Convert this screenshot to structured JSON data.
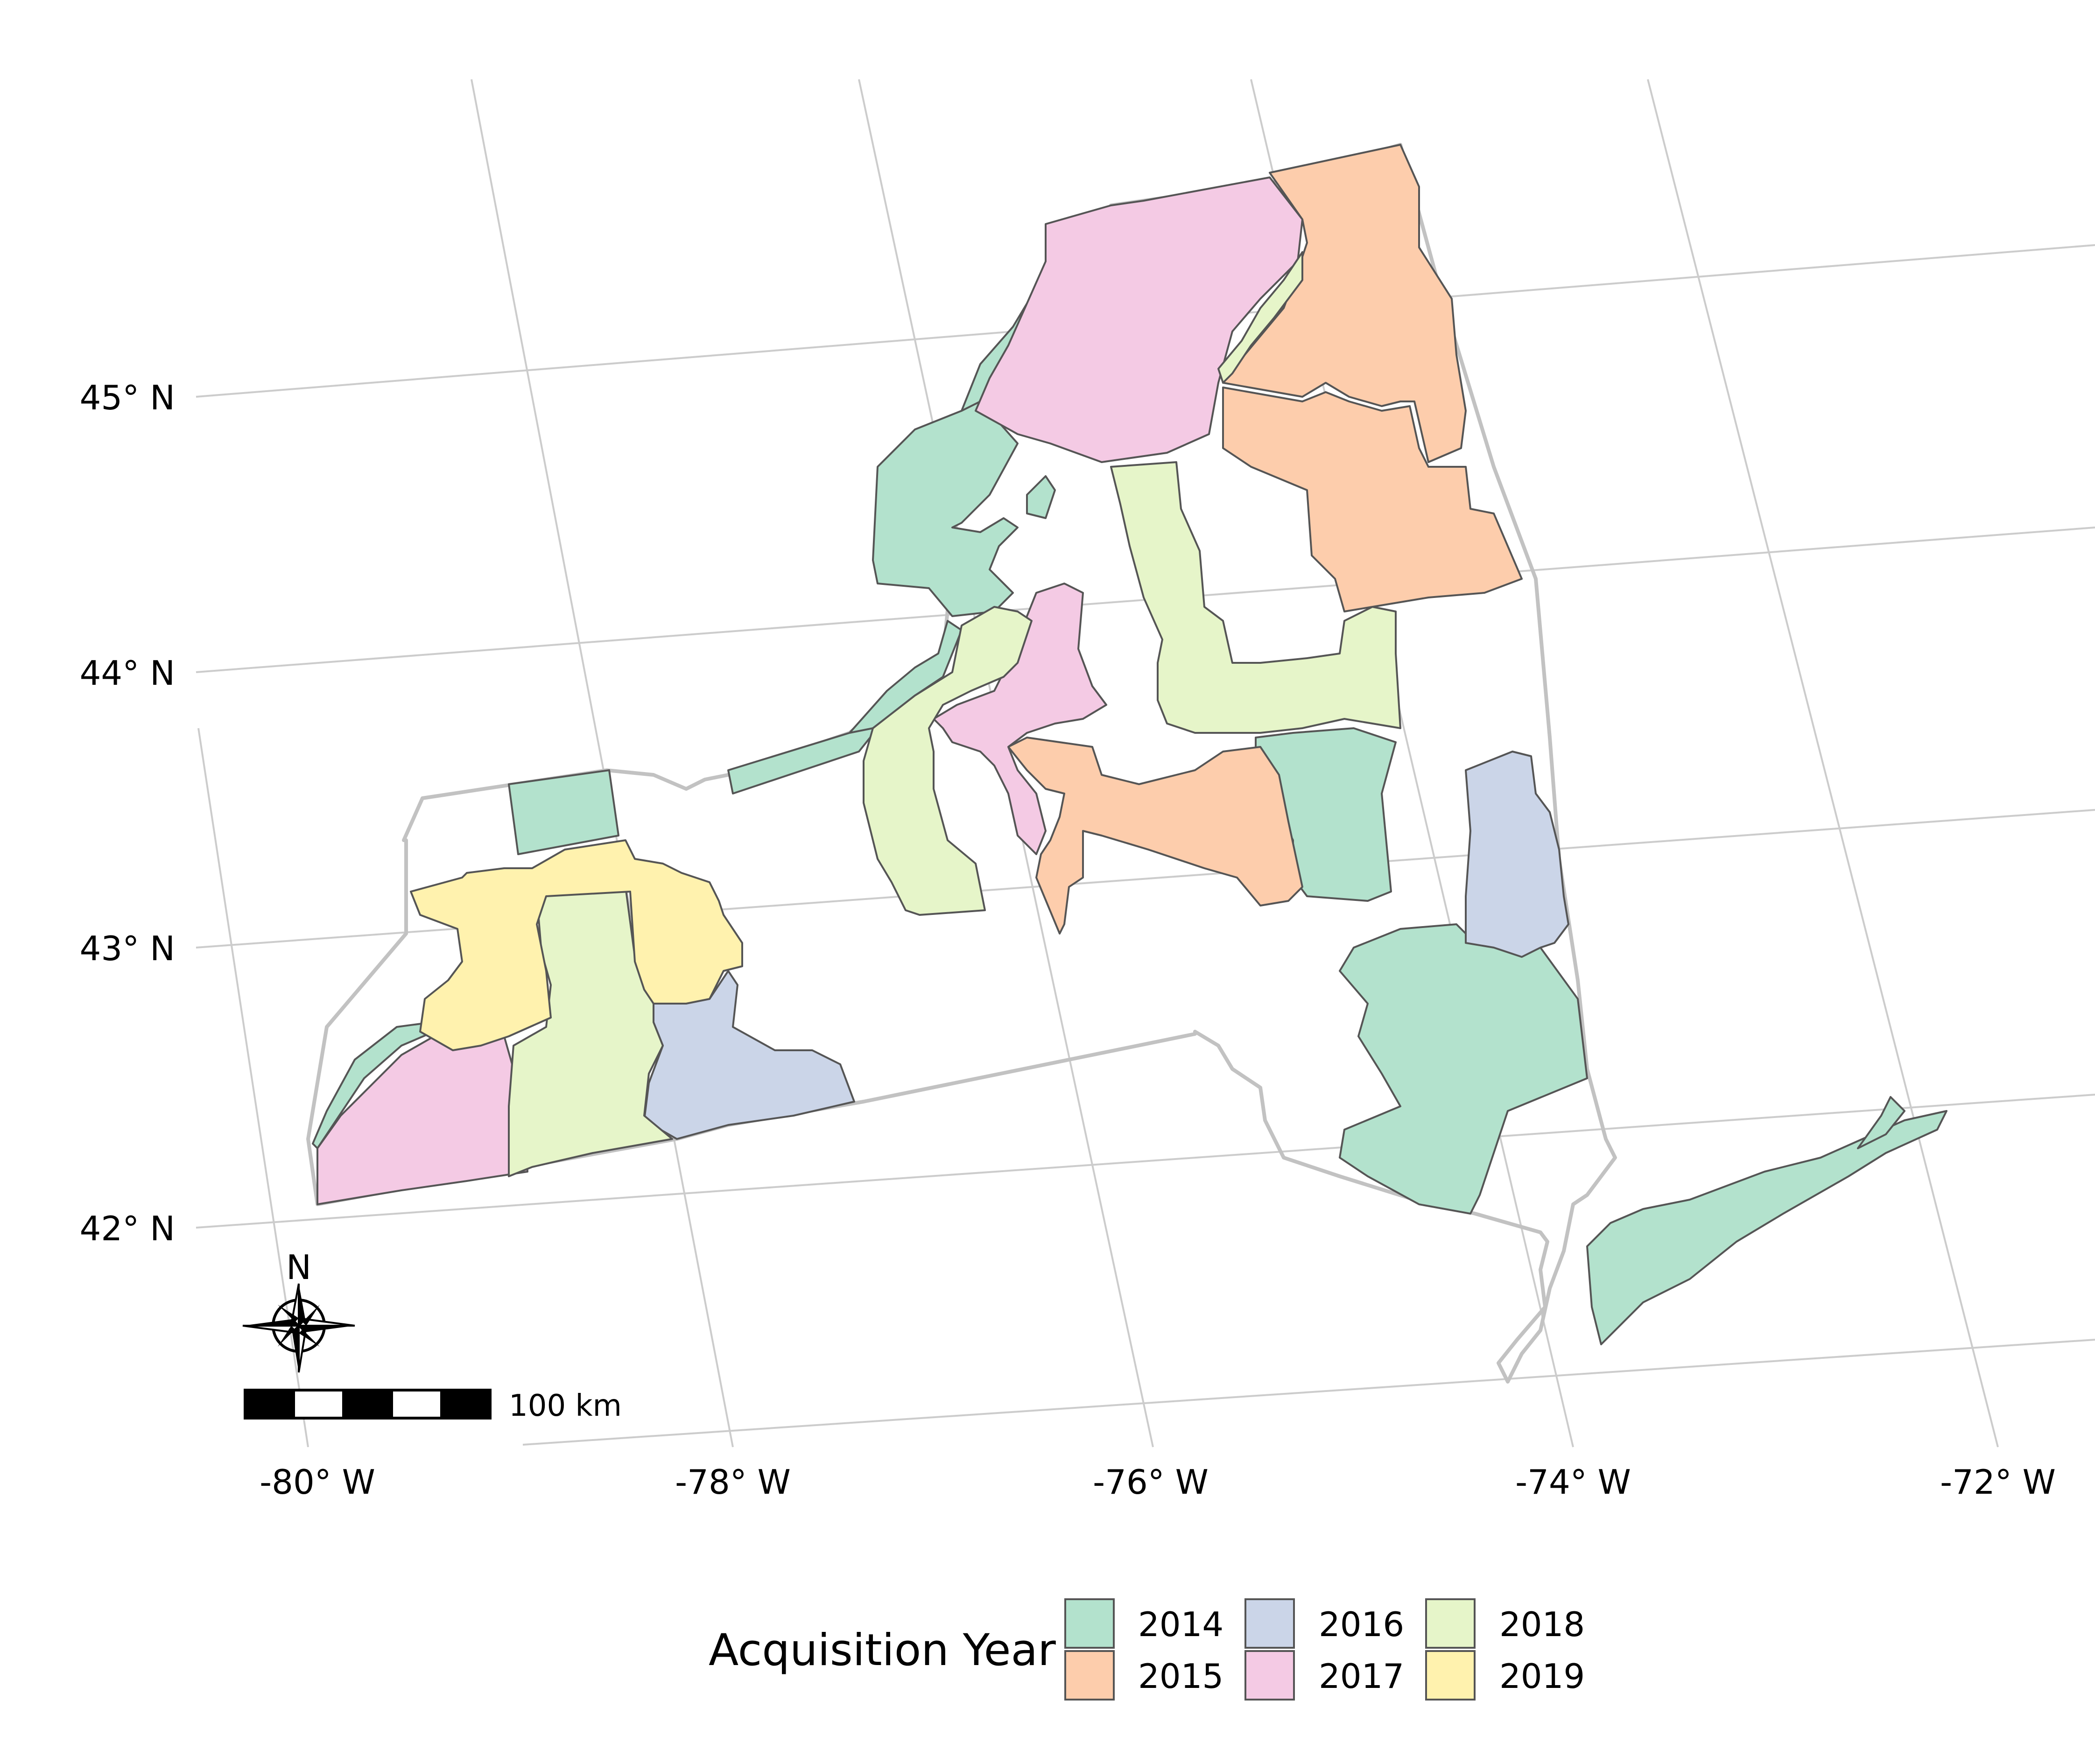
{
  "map": {
    "lat_labels": [
      "45° N",
      "44° N",
      "43° N",
      "42° N"
    ],
    "lon_labels": [
      "-80° W",
      "-78° W",
      "-76° W",
      "-74° W",
      "-72° W"
    ],
    "north_label": "N",
    "scale_bar_label": "100 km"
  },
  "legend": {
    "title": "Acquisition Year",
    "items": [
      {
        "label": "2014",
        "color": "#b3e2cd"
      },
      {
        "label": "2015",
        "color": "#fdcdac"
      },
      {
        "label": "2016",
        "color": "#cbd5e8"
      },
      {
        "label": "2017",
        "color": "#f4cae4"
      },
      {
        "label": "2018",
        "color": "#e6f5c9"
      },
      {
        "label": "2019",
        "color": "#fff2ae"
      }
    ]
  },
  "colors": {
    "grid": "#cccccc",
    "state_outline": "#c2c2c2",
    "region_border": "#555555"
  }
}
